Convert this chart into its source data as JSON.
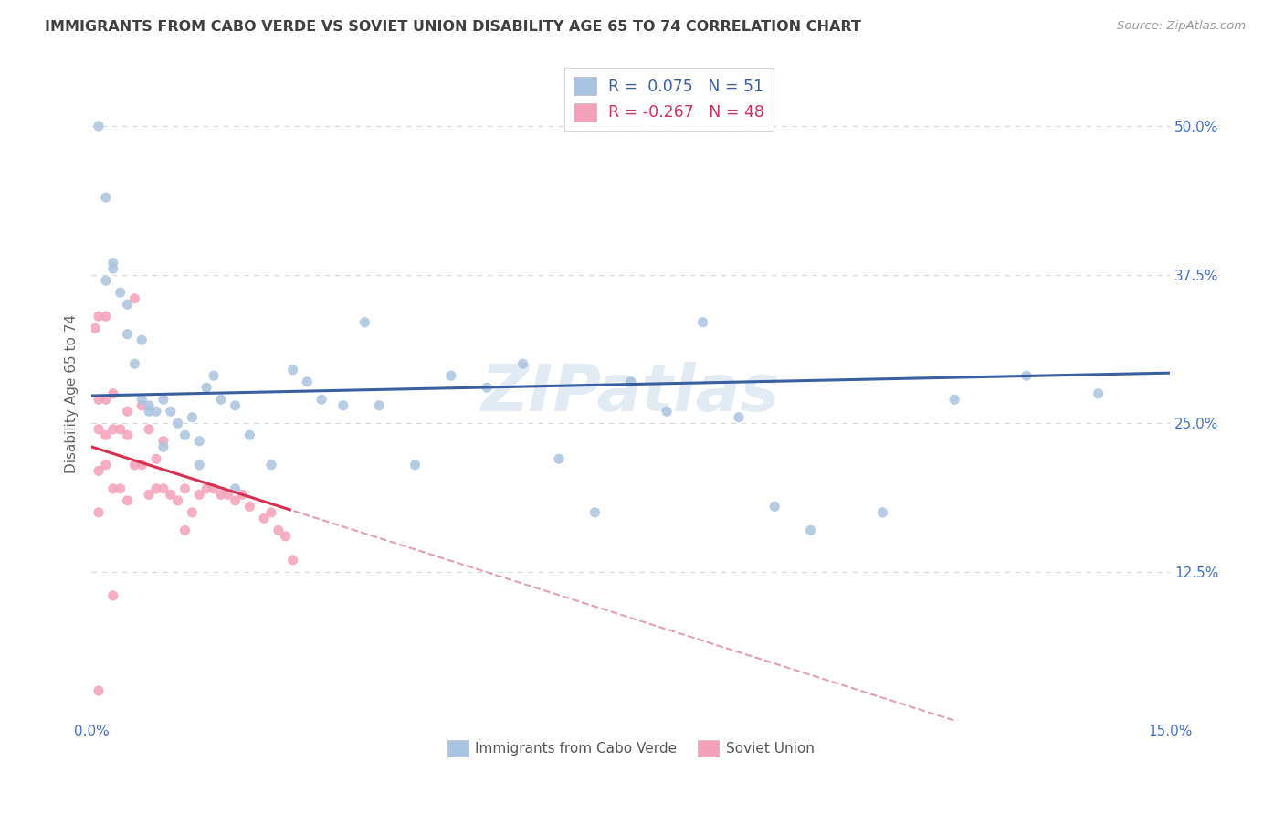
{
  "title": "IMMIGRANTS FROM CABO VERDE VS SOVIET UNION DISABILITY AGE 65 TO 74 CORRELATION CHART",
  "source": "Source: ZipAtlas.com",
  "ylabel": "Disability Age 65 to 74",
  "xlim": [
    0.0,
    0.15
  ],
  "ylim": [
    0.0,
    0.55
  ],
  "cabo_verde_R": 0.075,
  "cabo_verde_N": 51,
  "soviet_union_R": -0.267,
  "soviet_union_N": 48,
  "cabo_verde_color": "#a8c4e0",
  "soviet_union_color": "#f4a0b8",
  "cabo_verde_line_color": "#3a5fa0",
  "soviet_union_line_color": "#d93050",
  "soviet_union_dash_color": "#e0a0b0",
  "background_color": "#ffffff",
  "grid_color": "#d8d8d8",
  "title_color": "#404040",
  "axis_color": "#4472c4",
  "watermark": "ZIPatlas",
  "cabo_verde_x": [
    0.001,
    0.002,
    0.003,
    0.004,
    0.005,
    0.006,
    0.007,
    0.007,
    0.008,
    0.009,
    0.01,
    0.011,
    0.012,
    0.013,
    0.014,
    0.015,
    0.016,
    0.017,
    0.018,
    0.02,
    0.022,
    0.025,
    0.028,
    0.03,
    0.032,
    0.035,
    0.038,
    0.04,
    0.045,
    0.05,
    0.055,
    0.06,
    0.065,
    0.07,
    0.075,
    0.08,
    0.085,
    0.09,
    0.095,
    0.1,
    0.11,
    0.12,
    0.13,
    0.14,
    0.002,
    0.003,
    0.005,
    0.008,
    0.01,
    0.015,
    0.02
  ],
  "cabo_verde_y": [
    0.5,
    0.44,
    0.38,
    0.36,
    0.35,
    0.3,
    0.32,
    0.27,
    0.265,
    0.26,
    0.27,
    0.26,
    0.25,
    0.24,
    0.255,
    0.235,
    0.28,
    0.29,
    0.27,
    0.265,
    0.24,
    0.215,
    0.295,
    0.285,
    0.27,
    0.265,
    0.335,
    0.265,
    0.215,
    0.29,
    0.28,
    0.3,
    0.22,
    0.175,
    0.285,
    0.26,
    0.335,
    0.255,
    0.18,
    0.16,
    0.175,
    0.27,
    0.29,
    0.275,
    0.37,
    0.385,
    0.325,
    0.26,
    0.23,
    0.215,
    0.195
  ],
  "soviet_union_x": [
    0.0005,
    0.001,
    0.001,
    0.001,
    0.001,
    0.001,
    0.002,
    0.002,
    0.002,
    0.002,
    0.003,
    0.003,
    0.003,
    0.004,
    0.004,
    0.005,
    0.005,
    0.005,
    0.006,
    0.006,
    0.007,
    0.007,
    0.008,
    0.008,
    0.009,
    0.009,
    0.01,
    0.01,
    0.011,
    0.012,
    0.013,
    0.013,
    0.014,
    0.015,
    0.016,
    0.017,
    0.018,
    0.019,
    0.02,
    0.021,
    0.022,
    0.024,
    0.025,
    0.026,
    0.027,
    0.028,
    0.001,
    0.003
  ],
  "soviet_union_y": [
    0.33,
    0.34,
    0.27,
    0.245,
    0.21,
    0.025,
    0.34,
    0.27,
    0.24,
    0.215,
    0.275,
    0.245,
    0.195,
    0.245,
    0.195,
    0.26,
    0.24,
    0.185,
    0.355,
    0.215,
    0.265,
    0.215,
    0.245,
    0.19,
    0.22,
    0.195,
    0.235,
    0.195,
    0.19,
    0.185,
    0.195,
    0.16,
    0.175,
    0.19,
    0.195,
    0.195,
    0.19,
    0.19,
    0.185,
    0.19,
    0.18,
    0.17,
    0.175,
    0.16,
    0.155,
    0.135,
    0.175,
    0.105
  ]
}
